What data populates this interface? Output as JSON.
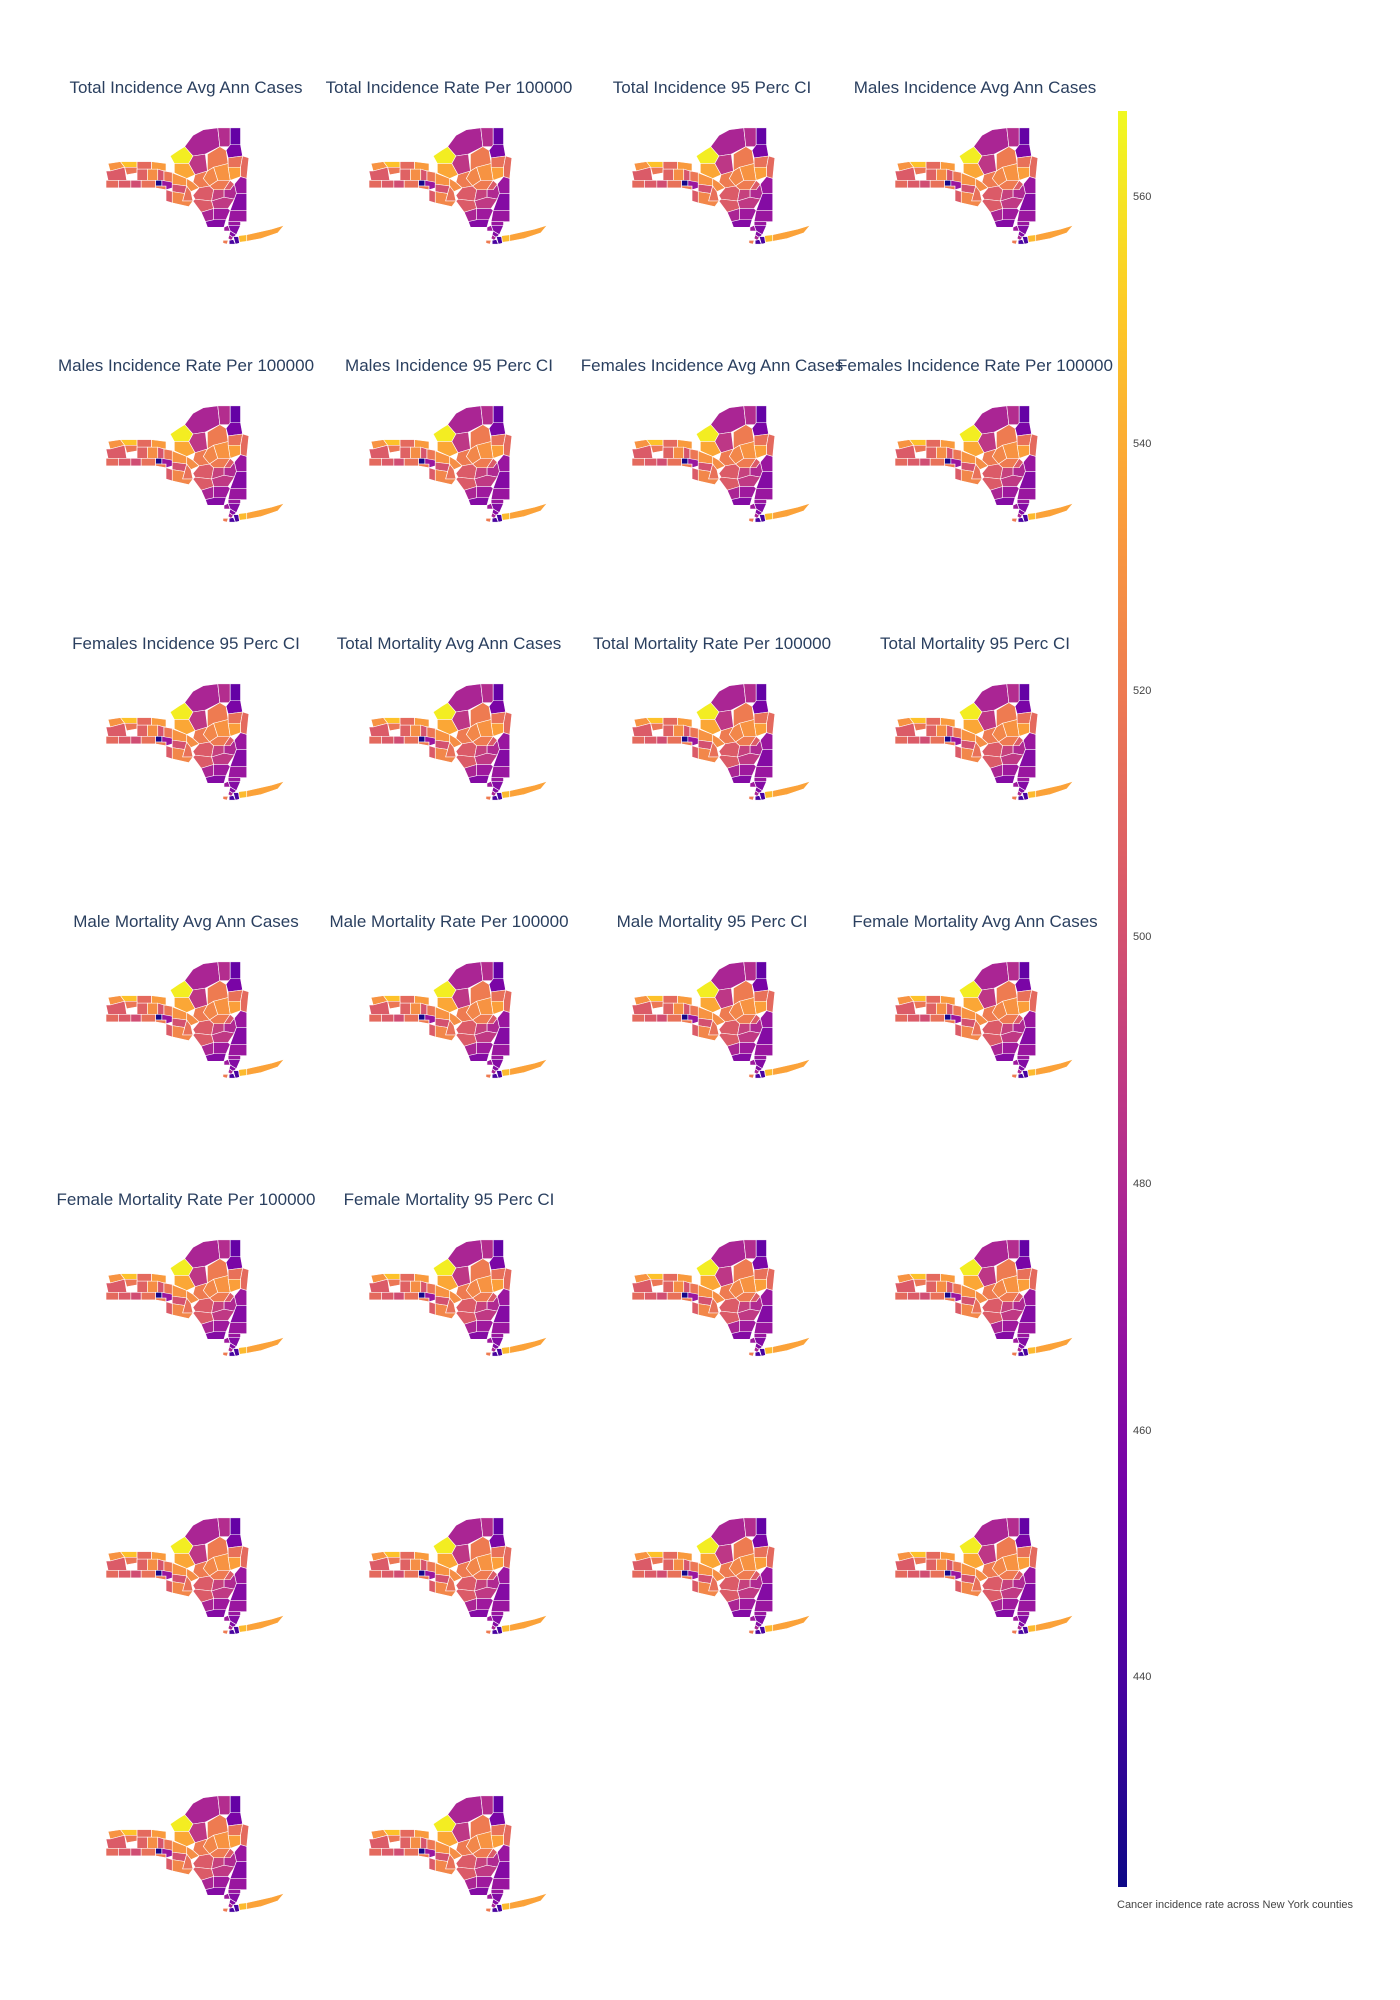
{
  "chart_data": {
    "type": "choropleth-grid",
    "region": "New York State counties",
    "panels": [
      {
        "title": "Total Incidence Avg Ann Cases"
      },
      {
        "title": "Total Incidence Rate Per 100000"
      },
      {
        "title": "Total Incidence 95 Perc CI"
      },
      {
        "title": "Males Incidence Avg Ann Cases"
      },
      {
        "title": "Males Incidence Rate Per 100000"
      },
      {
        "title": "Males Incidence 95 Perc CI"
      },
      {
        "title": "Females Incidence Avg Ann Cases"
      },
      {
        "title": "Females Incidence Rate Per 100000"
      },
      {
        "title": "Females Incidence 95 Perc CI"
      },
      {
        "title": "Total Mortality Avg Ann Cases"
      },
      {
        "title": "Total Mortality Rate Per 100000"
      },
      {
        "title": "Total Mortality 95 Perc CI"
      },
      {
        "title": "Male Mortality Avg Ann Cases"
      },
      {
        "title": "Male Mortality Rate Per 100000"
      },
      {
        "title": "Male Mortality 95 Perc CI"
      },
      {
        "title": "Female Mortality Avg Ann Cases"
      },
      {
        "title": "Female Mortality Rate Per 100000"
      },
      {
        "title": "Female Mortality 95 Perc CI"
      },
      {
        "title": ""
      },
      {
        "title": ""
      },
      {
        "title": ""
      },
      {
        "title": ""
      },
      {
        "title": ""
      },
      {
        "title": ""
      },
      {
        "title": ""
      },
      {
        "title": ""
      }
    ],
    "colorscale": "Plasma",
    "colorscale_colors": [
      "#0d0887",
      "#46039f",
      "#7201a8",
      "#9c179e",
      "#bd3786",
      "#d8576b",
      "#ed7953",
      "#fb9f3a",
      "#fdca26",
      "#f0f921"
    ],
    "colorbar": {
      "range": [
        423,
        567
      ],
      "ticks": [
        440,
        460,
        480,
        500,
        520,
        540,
        560
      ],
      "title": "Cancer incidence rate across New York counties"
    },
    "county_values_approx": {
      "St. Lawrence": 478,
      "Franklin": 482,
      "Clinton": 450,
      "Jefferson": 563,
      "Lewis": 487,
      "Essex": 458,
      "Hamilton": 520,
      "Herkimer": 525,
      "Warren": 515,
      "Washington": 512,
      "Oswego": 538,
      "Oneida": 520,
      "Saratoga": 535,
      "Fulton": 530,
      "Montgomery": 520,
      "Schenectady": 505,
      "Rensselaer": 470,
      "Albany": 480,
      "Niagara": 530,
      "Orleans": 548,
      "Monroe": 512,
      "Wayne": 533,
      "Erie": 505,
      "Genesee": 518,
      "Livingston": 508,
      "Ontario": 528,
      "Seneca": 502,
      "Cayuga": 518,
      "Onondaga": 530,
      "Madison": 528,
      "Chautauqua": 512,
      "Cattaraugus": 505,
      "Allegany": 498,
      "Steuben": 515,
      "Schuyler": 425,
      "Chemung": 520,
      "Tompkins": 470,
      "Cortland": 500,
      "Chenango": 515,
      "Otsego": 505,
      "Schoharie": 492,
      "Greene": 488,
      "Columbia": 462,
      "Delaware": 505,
      "Broome": 525,
      "Tioga": 505,
      "Ulster": 472,
      "Dutchess": 470,
      "Sullivan": 478,
      "Orange": 462,
      "Putnam": 470,
      "Rockland": 472,
      "Westchester": 462,
      "Bronx": 462,
      "New York": 478,
      "Kings": 440,
      "Queens": 440,
      "Richmond": 520,
      "Nassau": 545,
      "Suffolk": 536
    }
  }
}
